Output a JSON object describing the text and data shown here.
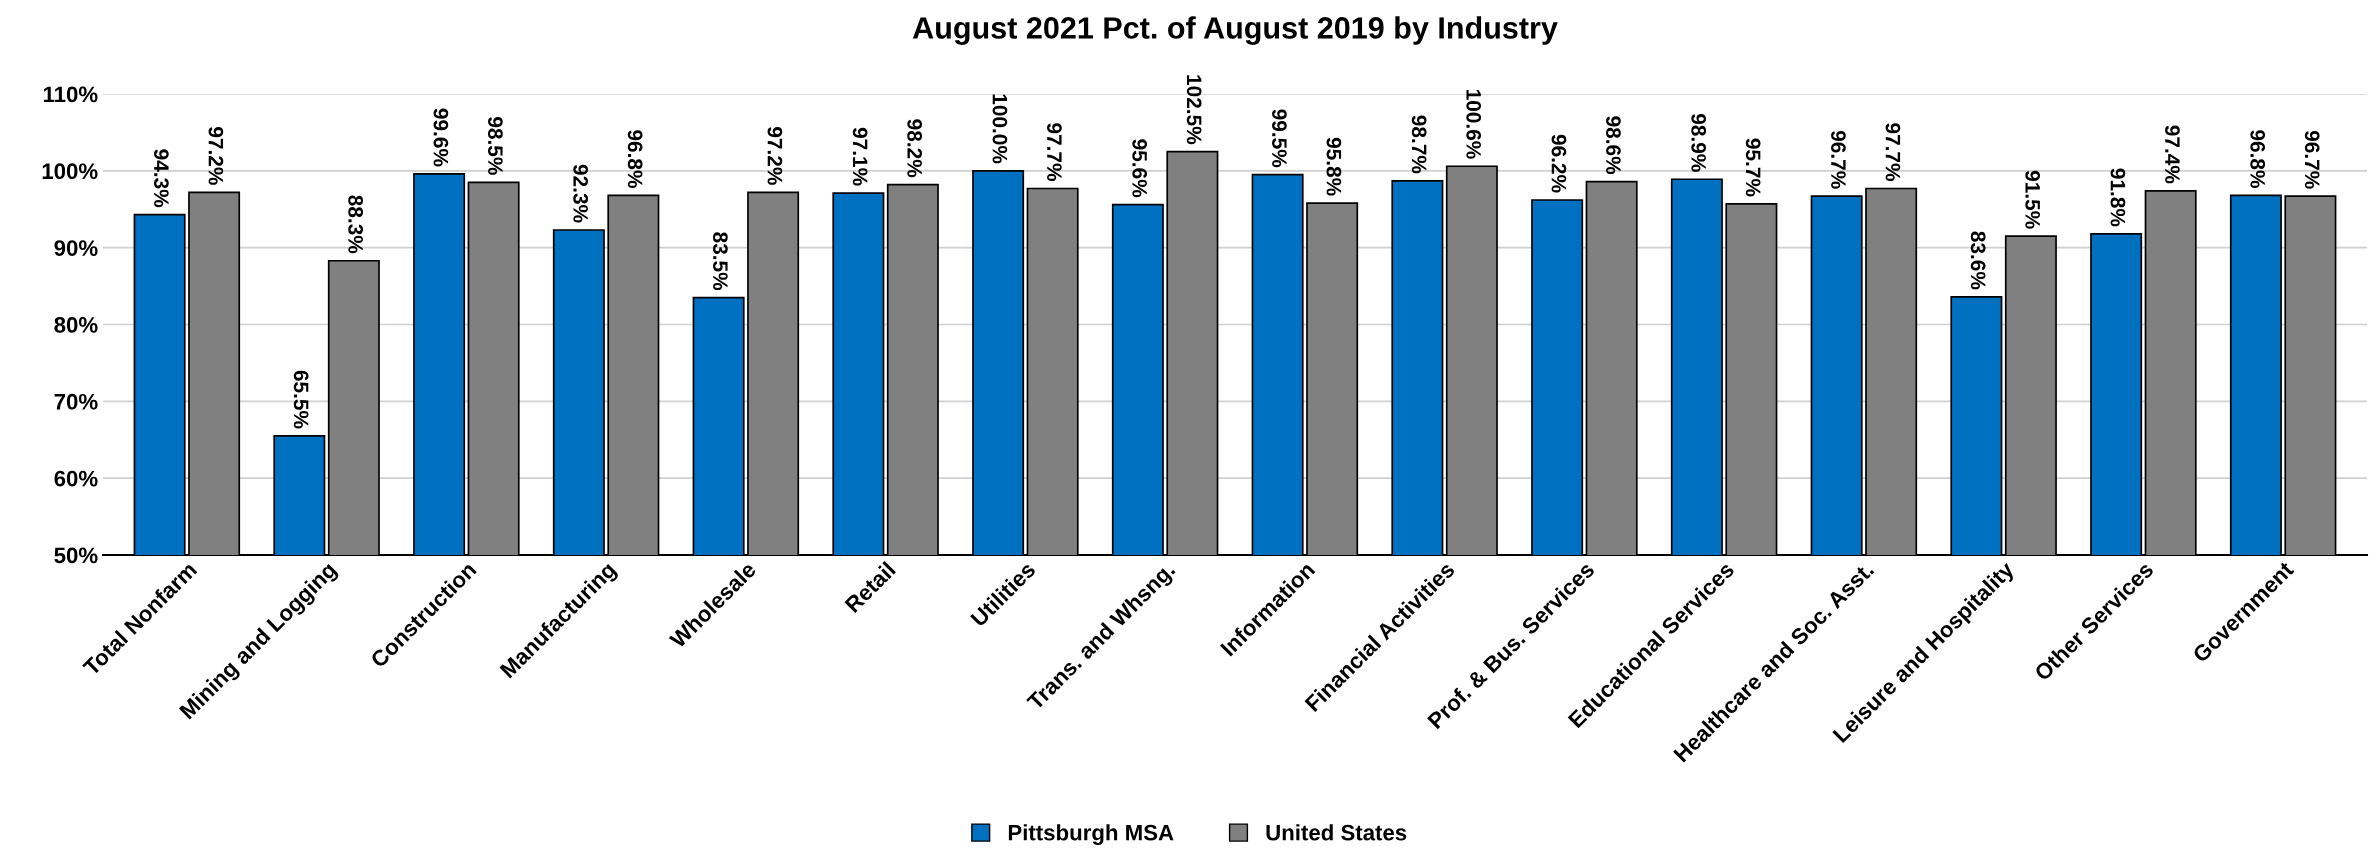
{
  "chart_data": {
    "type": "bar",
    "title": "August 2021 Pct. of August 2019 by Industry",
    "categories": [
      "Total Nonfarm",
      "Mining and Logging",
      "Construction",
      "Manufacturing",
      "Wholesale",
      "Retail",
      "Utilities",
      "Trans. and Whsng.",
      "Information",
      "Financial Activities",
      "Prof. & Bus. Services",
      "Educational Services",
      "Healthcare and Soc. Asst.",
      "Leisure and Hospitality",
      "Other Services",
      "Government"
    ],
    "series": [
      {
        "name": "Pittsburgh MSA",
        "color": "#0070c0",
        "values": [
          94.3,
          65.5,
          99.6,
          92.3,
          83.5,
          97.1,
          100.0,
          95.6,
          99.5,
          98.7,
          96.2,
          98.9,
          96.7,
          83.6,
          91.8,
          96.8
        ],
        "value_labels": [
          "94.3%",
          "65.5%",
          "99.6%",
          "92.3%",
          "83.5%",
          "97.1%",
          "100.0%",
          "95.6%",
          "99.5%",
          "98.7%",
          "96.2%",
          "98.9%",
          "96.7%",
          "83.6%",
          "91.8%",
          "96.8%"
        ]
      },
      {
        "name": "United States",
        "color": "#808080",
        "values": [
          97.2,
          88.3,
          98.5,
          96.8,
          97.2,
          98.2,
          97.7,
          102.5,
          95.8,
          100.6,
          98.6,
          95.7,
          97.7,
          91.5,
          97.4,
          96.7
        ],
        "value_labels": [
          "97.2%",
          "88.3%",
          "98.5%",
          "96.8%",
          "97.2%",
          "98.2%",
          "97.7%",
          "102.5%",
          "95.8%",
          "100.6%",
          "98.6%",
          "95.7%",
          "97.7%",
          "91.5%",
          "97.4%",
          "96.7%"
        ]
      }
    ],
    "ylim": [
      50,
      110
    ],
    "yticks": [
      {
        "value": 50,
        "label": "50%"
      },
      {
        "value": 60,
        "label": "60%"
      },
      {
        "value": 70,
        "label": "70%"
      },
      {
        "value": 80,
        "label": "80%"
      },
      {
        "value": 90,
        "label": "90%"
      },
      {
        "value": 100,
        "label": "100%"
      },
      {
        "value": 110,
        "label": "110%"
      }
    ],
    "grid": "y",
    "legend": "bottom"
  }
}
